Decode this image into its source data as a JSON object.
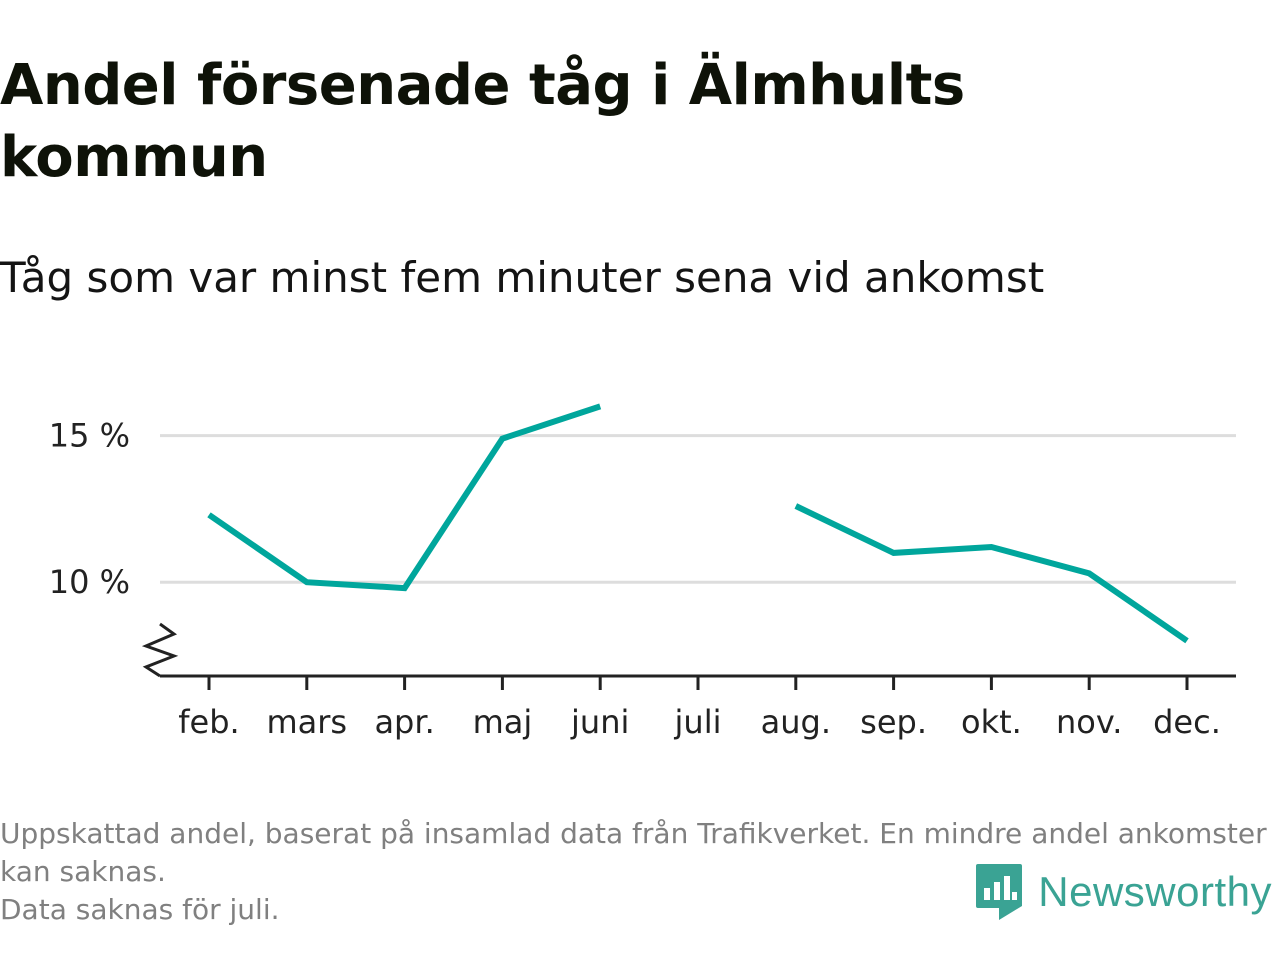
{
  "header": {
    "title": "Andel försenade tåg i Älmhults kommun",
    "subtitle": "Tåg som var minst fem minuter sena vid ankomst"
  },
  "chart_data": {
    "type": "line",
    "categories": [
      "feb.",
      "mars",
      "apr.",
      "maj",
      "juni",
      "juli",
      "aug.",
      "sep.",
      "okt.",
      "nov.",
      "dec."
    ],
    "series": [
      {
        "values": [
          12.3,
          10.0,
          9.8,
          14.9,
          16.0,
          null,
          12.6,
          11.0,
          11.2,
          10.3,
          8.0
        ]
      }
    ],
    "yticks": [
      10,
      15
    ],
    "ytick_labels": [
      "10 %",
      "15 %"
    ],
    "ylim": [
      6.8,
      16.9
    ],
    "grid": true,
    "axis_break": true,
    "line_color": "#00a69c",
    "grid_color": "#dddddd"
  },
  "footnote": {
    "line1": "Uppskattad andel, baserat på insamlad data från Trafikverket. En mindre andel ankomster kan saknas.",
    "line2": "Data saknas för juli."
  },
  "brand": {
    "name": "Newsworthy",
    "icon": "bar-chart-badge-icon",
    "color": "#3aa394"
  }
}
